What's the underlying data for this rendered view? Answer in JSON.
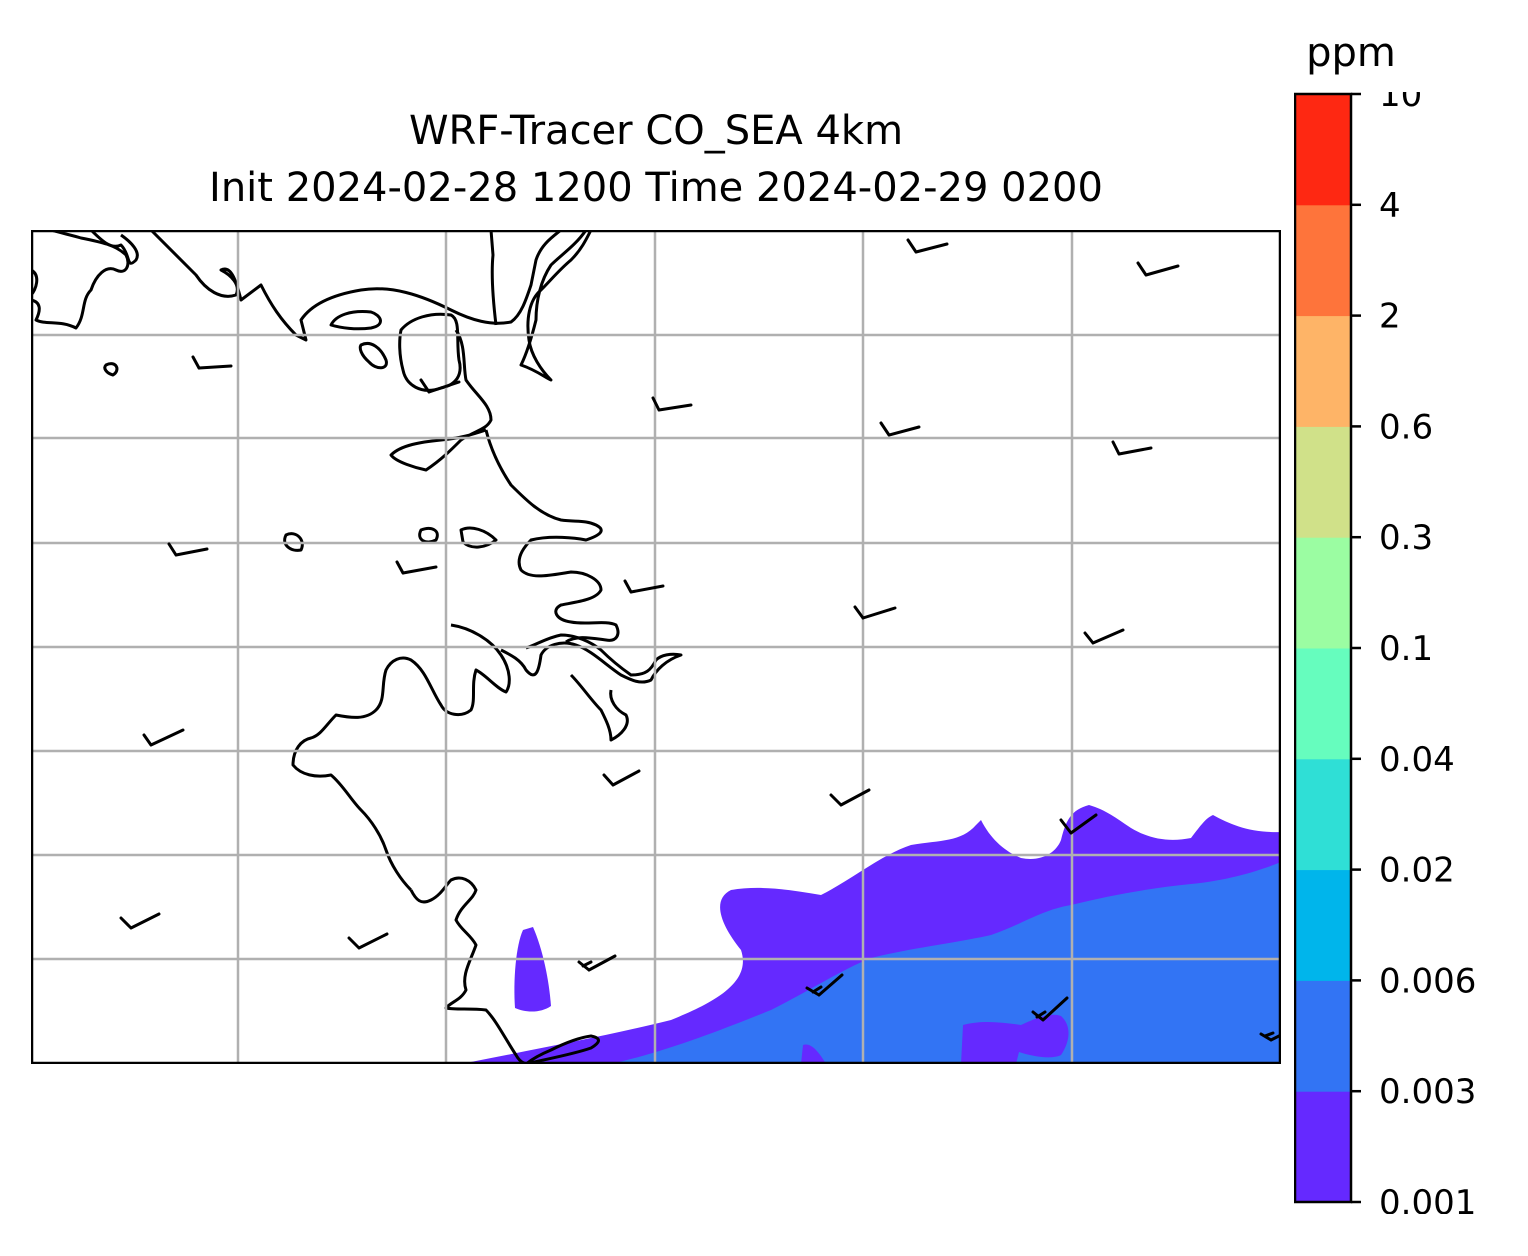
{
  "title": {
    "line1": "WRF-Tracer CO_SEA 4km",
    "line2": "Init 2024-02-28 1200 Time 2024-02-29 0200"
  },
  "colorbar": {
    "unit": "ppm",
    "levels": [
      "0.001",
      "0.003",
      "0.006",
      "0.02",
      "0.04",
      "0.1",
      "0.3",
      "0.6",
      "2",
      "4",
      "10"
    ],
    "colors": [
      "#6529ff",
      "#3274f4",
      "#00b5eb",
      "#2fdfd6",
      "#66fdbe",
      "#9bfda2",
      "#d0e189",
      "#feb467",
      "#fe743b",
      "#fe2812"
    ]
  },
  "map": {
    "gridlines": true,
    "coastline_color": "#000000",
    "grid_color": "#b0b0b0",
    "wind_barbs": true,
    "plume_levels_shown": [
      "0.001",
      "0.003"
    ]
  }
}
